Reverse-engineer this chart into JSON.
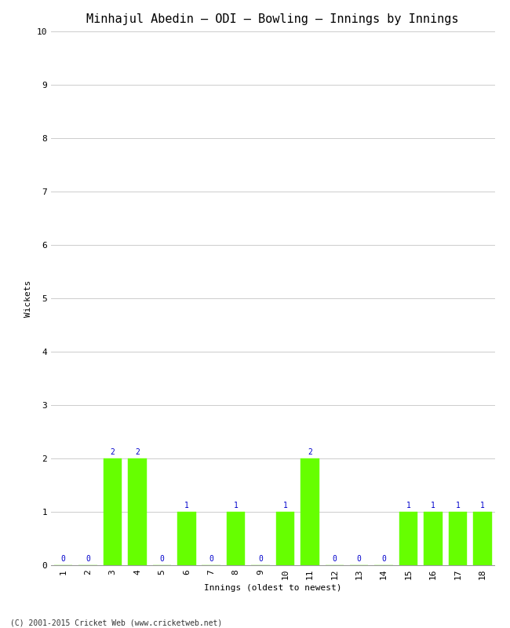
{
  "title": "Minhajul Abedin – ODI – Bowling – Innings by Innings",
  "xlabel": "Innings (oldest to newest)",
  "ylabel": "Wickets",
  "innings": [
    1,
    2,
    3,
    4,
    5,
    6,
    7,
    8,
    9,
    10,
    11,
    12,
    13,
    14,
    15,
    16,
    17,
    18
  ],
  "wickets": [
    0,
    0,
    2,
    2,
    0,
    1,
    0,
    1,
    0,
    1,
    2,
    0,
    0,
    0,
    1,
    1,
    1,
    1
  ],
  "bar_color": "#66ff00",
  "bar_edge_color": "#66ff00",
  "label_color": "#0000cc",
  "ylim": [
    0,
    10
  ],
  "yticks": [
    0,
    1,
    2,
    3,
    4,
    5,
    6,
    7,
    8,
    9,
    10
  ],
  "background_color": "#ffffff",
  "plot_bg_color": "#ffffff",
  "grid_color": "#cccccc",
  "title_fontsize": 11,
  "axis_label_fontsize": 8,
  "tick_fontsize": 8,
  "bar_label_fontsize": 7,
  "footer": "(C) 2001-2015 Cricket Web (www.cricketweb.net)",
  "footer_fontsize": 7
}
